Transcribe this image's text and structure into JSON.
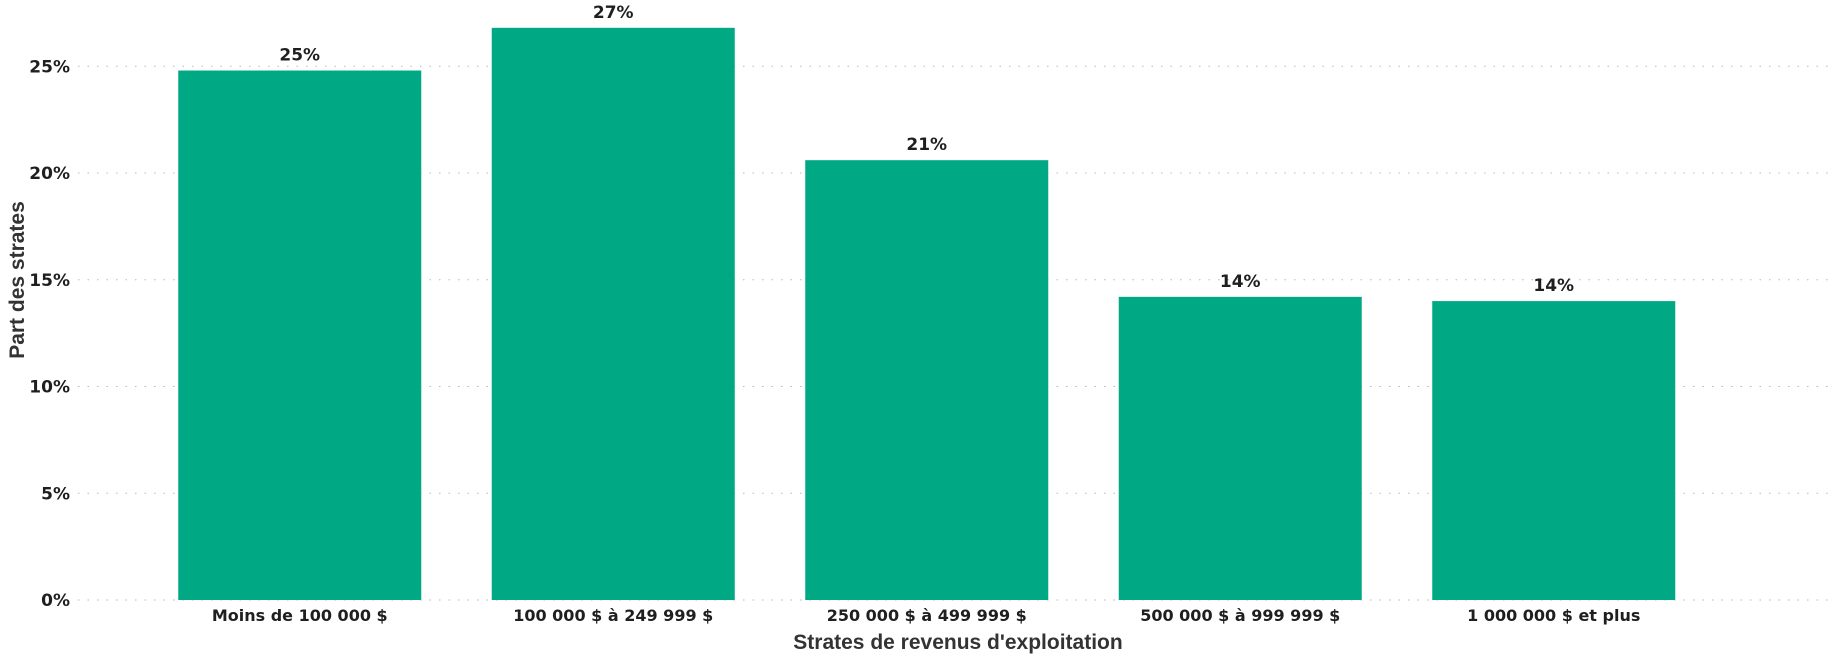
{
  "chart_data": {
    "type": "bar",
    "categories": [
      "Moins de 100 000 $",
      "100 000 $ à 249 999 $",
      "250 000 $ à 499 999 $",
      "500 000 $ à 999 999 $",
      "1 000 000 $ et plus"
    ],
    "values": [
      24.8,
      26.8,
      20.6,
      14.2,
      14.0
    ],
    "data_labels": [
      "25%",
      "27%",
      "21%",
      "14%",
      "14%"
    ],
    "xlabel": "Strates de revenus d'exploitation",
    "ylabel": "Part des strates",
    "ylim": [
      0,
      27
    ],
    "yticks": [
      0,
      5,
      10,
      15,
      20,
      25
    ],
    "ytick_labels": [
      "0%",
      "5%",
      "10%",
      "15%",
      "20%",
      "25%"
    ],
    "grid": true,
    "bar_color": "#00A884",
    "legend": "none"
  }
}
